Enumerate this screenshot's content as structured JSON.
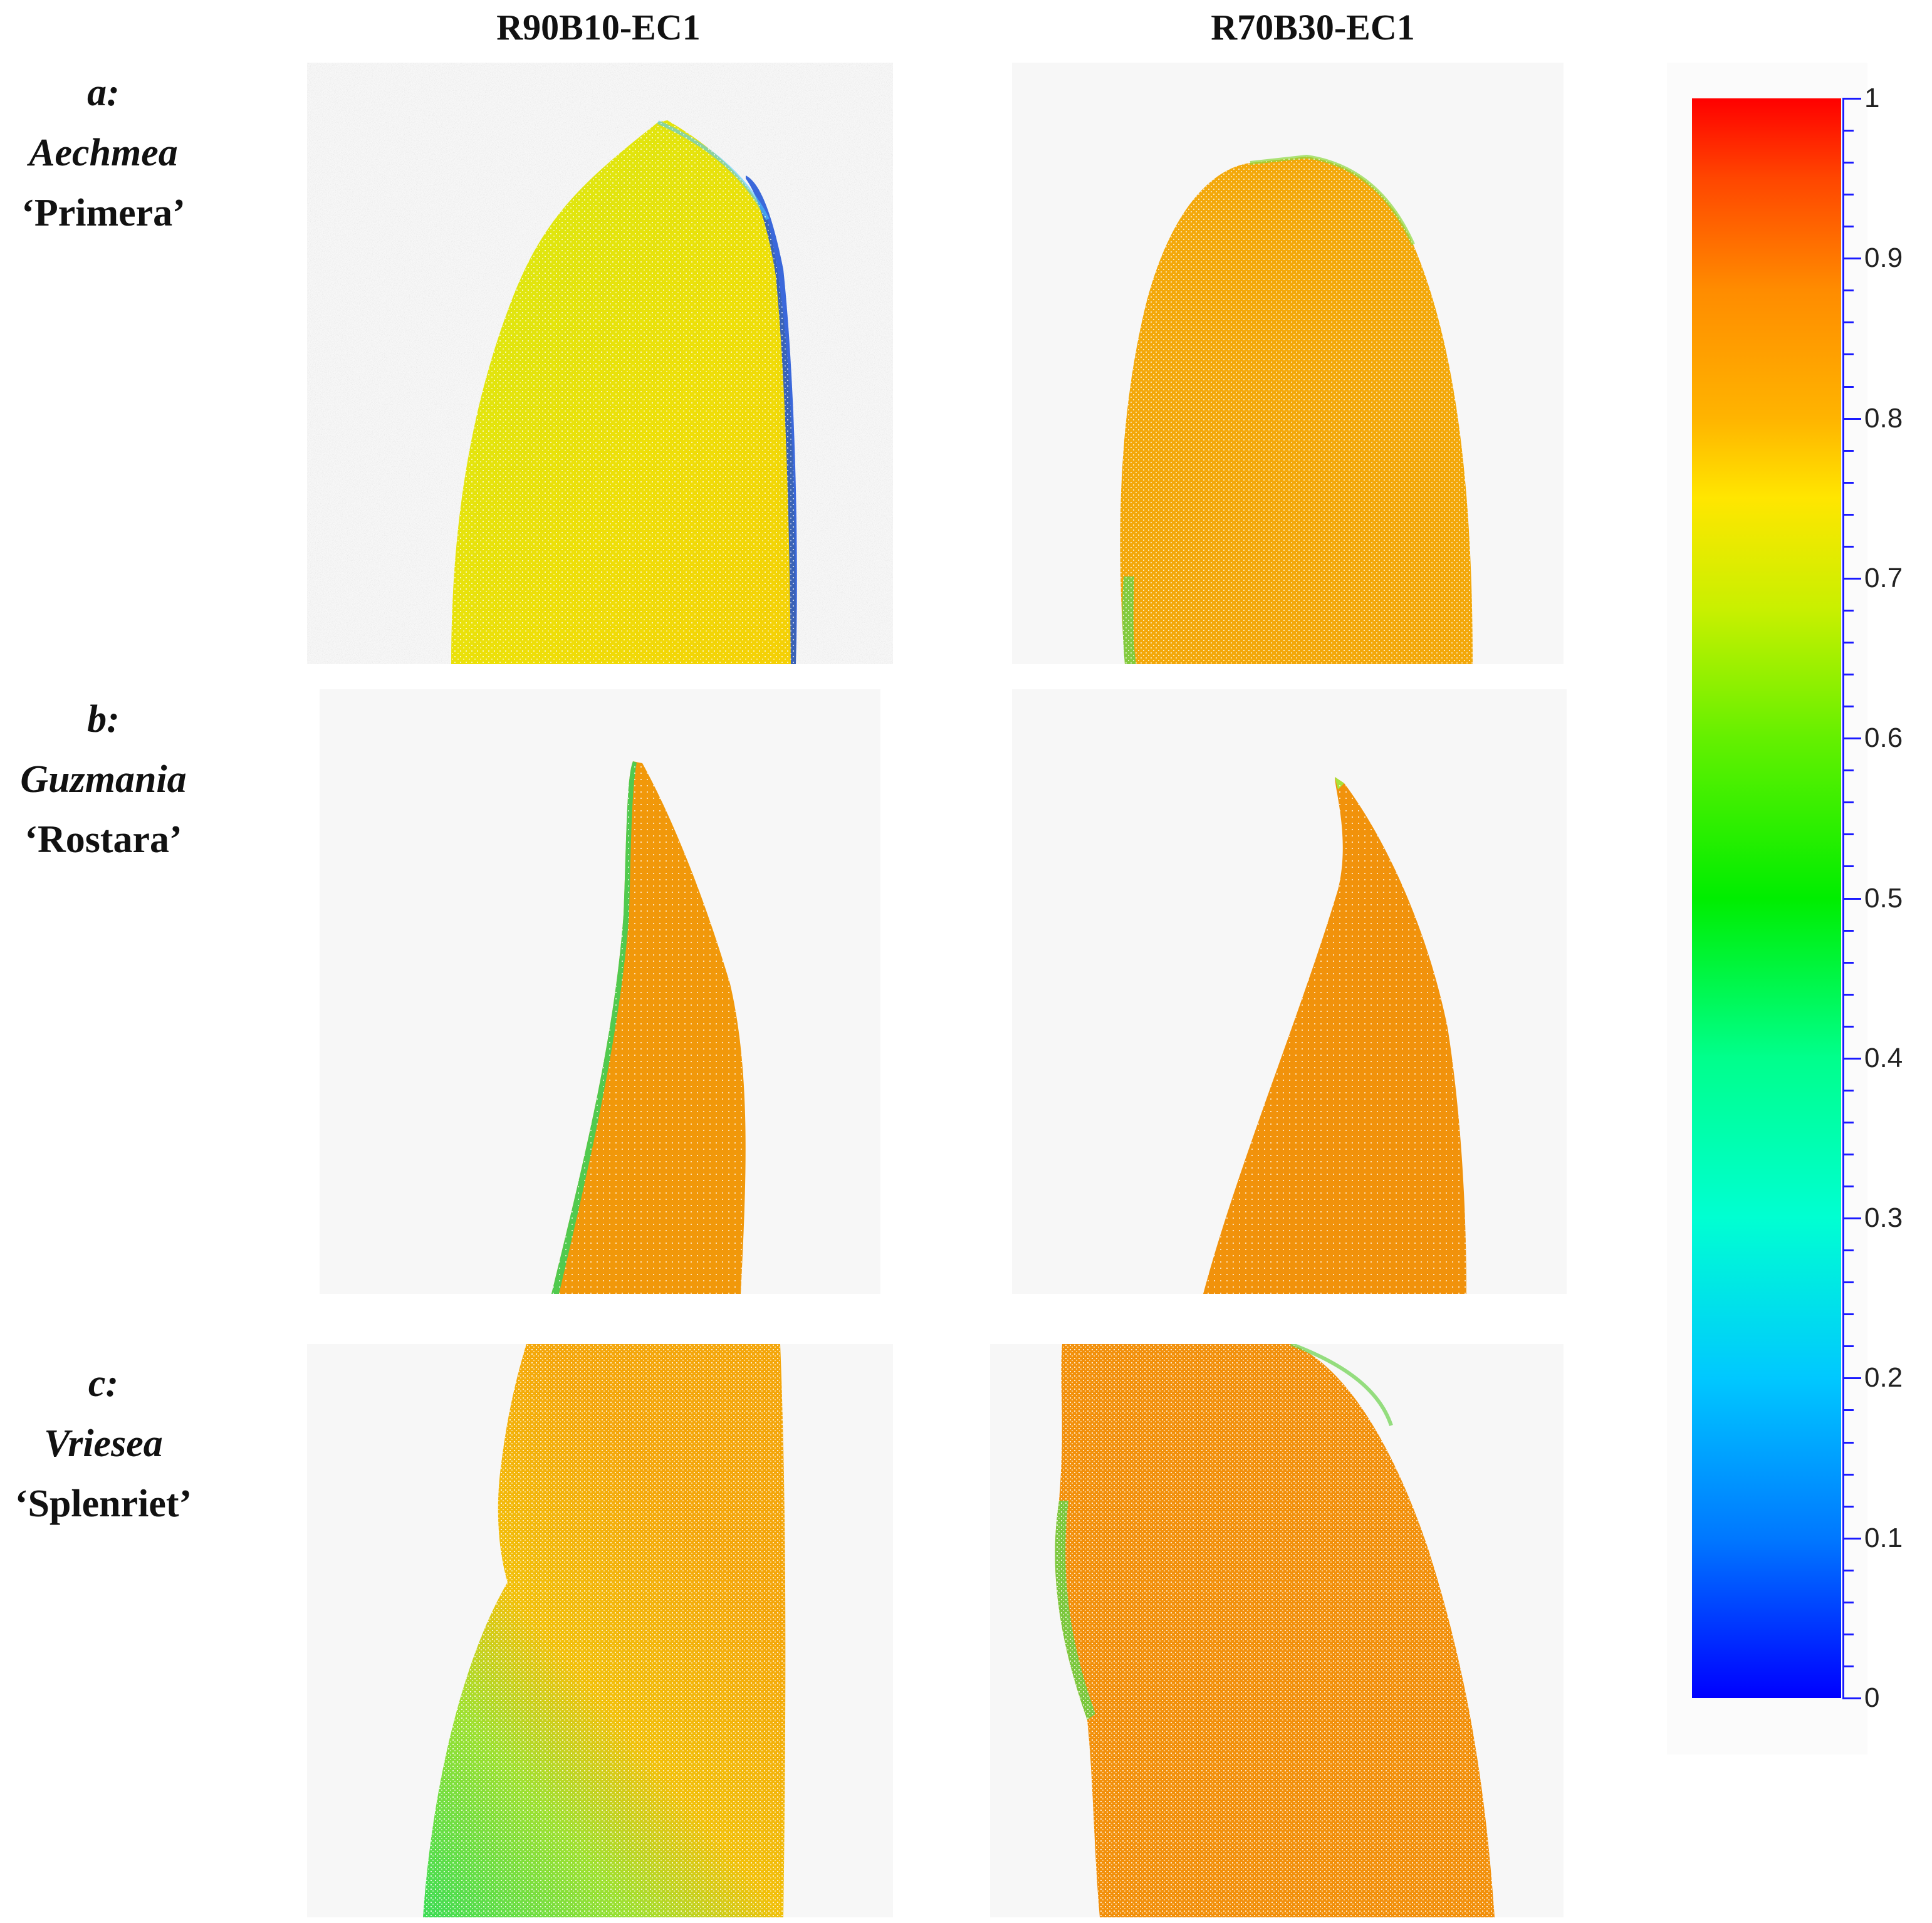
{
  "columns": [
    {
      "title": "R90B10-EC1"
    },
    {
      "title": "R70B30-EC1"
    }
  ],
  "rows": [
    {
      "letter": "a:",
      "genus": "Aechmea",
      "cultivar": "‘Primera’"
    },
    {
      "letter": "b:",
      "genus": "Guzmania",
      "cultivar": "‘Rostara’"
    },
    {
      "letter": "c:",
      "genus": "Vriesea",
      "cultivar": "‘Splenriet’"
    }
  ],
  "colorbar": {
    "ticks": [
      "0",
      "0.1",
      "0.2",
      "0.3",
      "0.4",
      "0.5",
      "0.6",
      "0.7",
      "0.8",
      "0.9",
      "1"
    ],
    "min": 0,
    "max": 1,
    "colormap": "jet"
  },
  "panel_values": {
    "a_R90B10": 0.74,
    "a_R70B30": 0.82,
    "b_R90B10": 0.83,
    "b_R70B30": 0.83,
    "c_R90B10": 0.78,
    "c_R70B30": 0.83
  }
}
